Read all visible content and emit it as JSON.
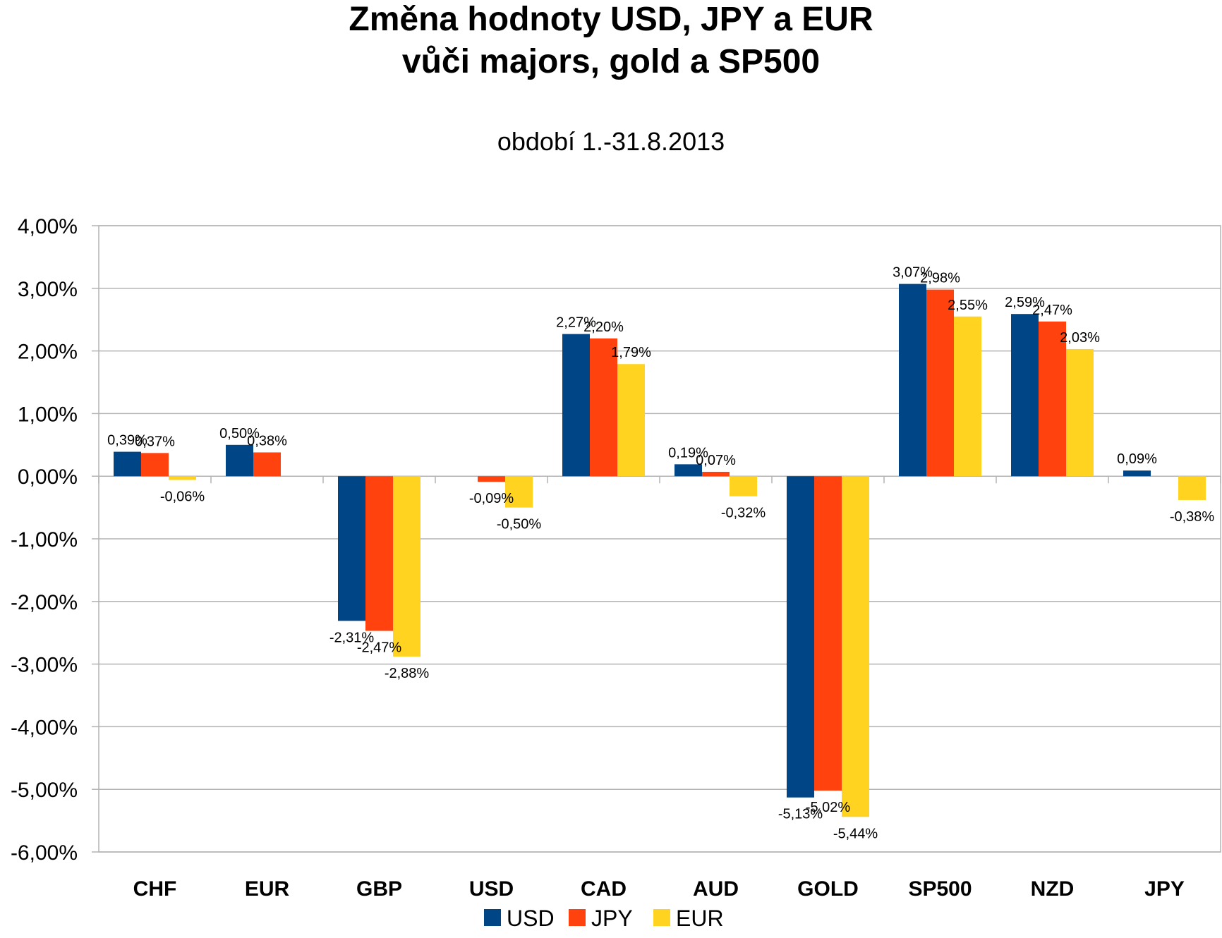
{
  "chart_data": {
    "type": "bar",
    "title_line1": "Změna hodnoty USD, JPY a EUR",
    "title_line2": "vůči majors, gold a SP500",
    "subtitle": "období 1.-31.8.2013",
    "categories": [
      "CHF",
      "EUR",
      "GBP",
      "USD",
      "CAD",
      "AUD",
      "GOLD",
      "SP500",
      "NZD",
      "JPY"
    ],
    "series": [
      {
        "name": "USD",
        "color": "#004586",
        "values": [
          0.39,
          0.5,
          -2.31,
          null,
          2.27,
          0.19,
          -5.13,
          3.07,
          2.59,
          0.09
        ]
      },
      {
        "name": "JPY",
        "color": "#ff420e",
        "values": [
          0.37,
          0.38,
          -2.47,
          -0.09,
          2.2,
          0.07,
          -5.02,
          2.98,
          2.47,
          null
        ]
      },
      {
        "name": "EUR",
        "color": "#ffd320",
        "values": [
          -0.06,
          null,
          -2.88,
          -0.5,
          1.79,
          -0.32,
          -5.44,
          2.55,
          2.03,
          -0.38
        ]
      }
    ],
    "data_labels": [
      [
        "0,39%",
        "0,50%",
        "-2,31%",
        "",
        "2,27%",
        "0,19%",
        "-5,13%",
        "3,07%",
        "2,59%",
        "0,09%"
      ],
      [
        "0,37%",
        "0,38%",
        "-2,47%",
        "-0,09%",
        "2,20%",
        "0,07%",
        "-5,02%",
        "2,98%",
        "2,47%",
        ""
      ],
      [
        "-0,06%",
        "",
        "-2,88%",
        "-0,50%",
        "1,79%",
        "-0,32%",
        "-5,44%",
        "2,55%",
        "2,03%",
        "-0,38%"
      ]
    ],
    "y_ticks": [
      4,
      3,
      2,
      1,
      0,
      -1,
      -2,
      -3,
      -4,
      -5,
      -6
    ],
    "y_tick_labels": [
      "4,00%",
      "3,00%",
      "2,00%",
      "1,00%",
      "0,00%",
      "-1,00%",
      "-2,00%",
      "-3,00%",
      "-4,00%",
      "-5,00%",
      "-6,00%"
    ],
    "ylim": [
      -6,
      4
    ],
    "grid": true,
    "legend_position": "bottom"
  }
}
